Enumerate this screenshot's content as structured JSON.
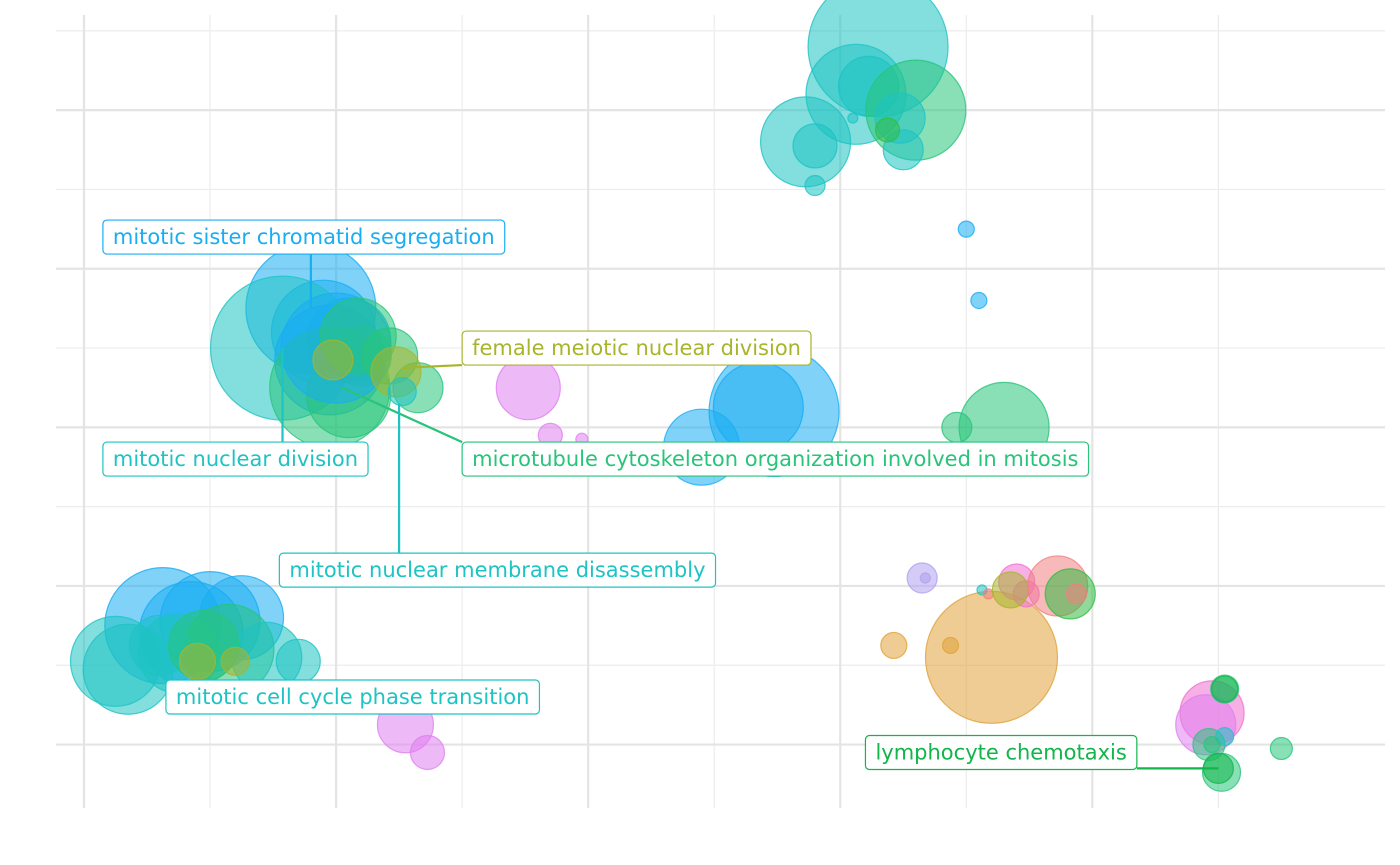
{
  "chart_data": {
    "type": "scatter",
    "title": "",
    "xlabel": "",
    "ylabel": "",
    "grid": true,
    "legend": "none",
    "xlim": [
      0,
      20.2
    ],
    "ylim": [
      0,
      10
    ],
    "x_major": [
      0,
      4,
      8,
      12,
      16
    ],
    "x_minor": [
      2,
      6,
      10,
      14,
      18
    ],
    "y_major": [
      0.8,
      2.8,
      4.8,
      6.8,
      8.8
    ],
    "y_minor": [
      1.8,
      3.8,
      5.8,
      7.8,
      9.8
    ],
    "colors": {
      "teal": "#1ec3c3",
      "blue": "#19adf2",
      "green": "#28c47a",
      "olive": "#a8b52a",
      "pink": "#e080f0",
      "orange": "#e0a23a",
      "lime": "#33bb44",
      "purple": "#b0a0f0",
      "magenta": "#f070d0",
      "salmon": "#f08080",
      "darkgreen": "#12b54a"
    },
    "points": [
      {
        "x": 12.6,
        "y": 9.6,
        "r": 70,
        "c": "teal"
      },
      {
        "x": 12.25,
        "y": 9.0,
        "r": 50,
        "c": "teal"
      },
      {
        "x": 12.45,
        "y": 9.1,
        "r": 30,
        "c": "teal"
      },
      {
        "x": 13.2,
        "y": 8.8,
        "r": 50,
        "c": "green"
      },
      {
        "x": 12.95,
        "y": 8.7,
        "r": 25,
        "c": "teal"
      },
      {
        "x": 13.0,
        "y": 8.3,
        "r": 20,
        "c": "teal"
      },
      {
        "x": 11.45,
        "y": 8.4,
        "r": 45,
        "c": "teal"
      },
      {
        "x": 11.6,
        "y": 8.35,
        "r": 22,
        "c": "teal"
      },
      {
        "x": 12.75,
        "y": 8.55,
        "r": 12,
        "c": "lime"
      },
      {
        "x": 12.2,
        "y": 8.7,
        "r": 5,
        "c": "teal"
      },
      {
        "x": 11.6,
        "y": 7.85,
        "r": 10,
        "c": "teal"
      },
      {
        "x": 14.0,
        "y": 7.3,
        "r": 8,
        "c": "blue"
      },
      {
        "x": 14.2,
        "y": 6.4,
        "r": 8,
        "c": "blue"
      },
      {
        "x": 3.6,
        "y": 6.3,
        "r": 65,
        "c": "blue"
      },
      {
        "x": 3.8,
        "y": 6.0,
        "r": 52,
        "c": "blue"
      },
      {
        "x": 4.2,
        "y": 5.9,
        "r": 42,
        "c": "blue"
      },
      {
        "x": 3.15,
        "y": 5.8,
        "r": 72,
        "c": "teal"
      },
      {
        "x": 3.9,
        "y": 5.65,
        "r": 55,
        "c": "blue"
      },
      {
        "x": 3.9,
        "y": 5.3,
        "r": 60,
        "c": "green"
      },
      {
        "x": 4.2,
        "y": 5.2,
        "r": 42,
        "c": "green"
      },
      {
        "x": 4.4,
        "y": 5.7,
        "r": 30,
        "c": "green"
      },
      {
        "x": 4.0,
        "y": 5.8,
        "r": 55,
        "c": "blue"
      },
      {
        "x": 4.35,
        "y": 5.95,
        "r": 38,
        "c": "green"
      },
      {
        "x": 4.85,
        "y": 5.7,
        "r": 28,
        "c": "green"
      },
      {
        "x": 5.3,
        "y": 5.3,
        "r": 25,
        "c": "green"
      },
      {
        "x": 4.95,
        "y": 5.5,
        "r": 25,
        "c": "olive"
      },
      {
        "x": 3.95,
        "y": 5.65,
        "r": 20,
        "c": "olive"
      },
      {
        "x": 5.05,
        "y": 5.25,
        "r": 14,
        "c": "teal"
      },
      {
        "x": 7.05,
        "y": 5.3,
        "r": 32,
        "c": "pink"
      },
      {
        "x": 7.4,
        "y": 4.7,
        "r": 12,
        "c": "pink"
      },
      {
        "x": 7.9,
        "y": 4.65,
        "r": 6,
        "c": "pink"
      },
      {
        "x": 10.95,
        "y": 5.0,
        "r": 65,
        "c": "blue"
      },
      {
        "x": 10.7,
        "y": 5.05,
        "r": 45,
        "c": "blue"
      },
      {
        "x": 9.8,
        "y": 4.55,
        "r": 38,
        "c": "blue"
      },
      {
        "x": 14.6,
        "y": 4.8,
        "r": 45,
        "c": "green"
      },
      {
        "x": 13.85,
        "y": 4.8,
        "r": 15,
        "c": "green"
      },
      {
        "x": 1.25,
        "y": 2.3,
        "r": 58,
        "c": "blue"
      },
      {
        "x": 2.0,
        "y": 2.35,
        "r": 50,
        "c": "blue"
      },
      {
        "x": 2.5,
        "y": 2.4,
        "r": 42,
        "c": "blue"
      },
      {
        "x": 1.7,
        "y": 2.2,
        "r": 52,
        "c": "blue"
      },
      {
        "x": 0.5,
        "y": 1.85,
        "r": 45,
        "c": "teal"
      },
      {
        "x": 0.7,
        "y": 1.75,
        "r": 45,
        "c": "teal"
      },
      {
        "x": 1.5,
        "y": 1.95,
        "r": 40,
        "c": "teal"
      },
      {
        "x": 2.3,
        "y": 2.0,
        "r": 45,
        "c": "green"
      },
      {
        "x": 2.9,
        "y": 1.9,
        "r": 35,
        "c": "teal"
      },
      {
        "x": 1.2,
        "y": 2.05,
        "r": 30,
        "c": "teal"
      },
      {
        "x": 1.9,
        "y": 2.05,
        "r": 35,
        "c": "green"
      },
      {
        "x": 3.4,
        "y": 1.85,
        "r": 22,
        "c": "teal"
      },
      {
        "x": 1.8,
        "y": 1.85,
        "r": 18,
        "c": "olive"
      },
      {
        "x": 2.4,
        "y": 1.85,
        "r": 14,
        "c": "olive"
      },
      {
        "x": 5.1,
        "y": 1.05,
        "r": 28,
        "c": "pink"
      },
      {
        "x": 5.45,
        "y": 0.7,
        "r": 17,
        "c": "pink"
      },
      {
        "x": 14.4,
        "y": 1.9,
        "r": 66,
        "c": "orange"
      },
      {
        "x": 12.85,
        "y": 2.05,
        "r": 13,
        "c": "orange"
      },
      {
        "x": 13.75,
        "y": 2.05,
        "r": 8,
        "c": "orange"
      },
      {
        "x": 13.3,
        "y": 2.9,
        "r": 15,
        "c": "purple"
      },
      {
        "x": 13.35,
        "y": 2.9,
        "r": 5,
        "c": "purple"
      },
      {
        "x": 14.25,
        "y": 2.75,
        "r": 5,
        "c": "teal"
      },
      {
        "x": 14.35,
        "y": 2.7,
        "r": 5,
        "c": "salmon"
      },
      {
        "x": 14.8,
        "y": 2.85,
        "r": 18,
        "c": "magenta"
      },
      {
        "x": 14.95,
        "y": 2.7,
        "r": 13,
        "c": "magenta"
      },
      {
        "x": 14.7,
        "y": 2.75,
        "r": 18,
        "c": "olive"
      },
      {
        "x": 15.45,
        "y": 2.8,
        "r": 30,
        "c": "salmon"
      },
      {
        "x": 15.65,
        "y": 2.7,
        "r": 25,
        "c": "lime"
      },
      {
        "x": 15.75,
        "y": 2.7,
        "r": 10,
        "c": "salmon"
      },
      {
        "x": 17.9,
        "y": 1.2,
        "r": 32,
        "c": "magenta"
      },
      {
        "x": 17.8,
        "y": 1.05,
        "r": 30,
        "c": "pink"
      },
      {
        "x": 18.1,
        "y": 1.5,
        "r": 14,
        "c": "green"
      },
      {
        "x": 18.1,
        "y": 1.5,
        "r": 13,
        "c": "darkgreen"
      },
      {
        "x": 17.85,
        "y": 0.8,
        "r": 16,
        "c": "green"
      },
      {
        "x": 18.1,
        "y": 0.9,
        "r": 9,
        "c": "teal"
      },
      {
        "x": 17.9,
        "y": 0.8,
        "r": 8,
        "c": "green"
      },
      {
        "x": 18.05,
        "y": 0.45,
        "r": 19,
        "c": "green"
      },
      {
        "x": 18.0,
        "y": 0.5,
        "r": 15,
        "c": "darkgreen"
      },
      {
        "x": 19.0,
        "y": 0.75,
        "r": 11,
        "c": "green"
      }
    ],
    "annotations": [
      {
        "text": "mitotic sister chromatid segregation",
        "c": "blue",
        "tx": 0.3,
        "ty": 7.2,
        "px": 3.6,
        "py": 6.3
      },
      {
        "text": "female meiotic nuclear division",
        "c": "olive",
        "tx": 6.0,
        "ty": 5.8,
        "px": 5.05,
        "py": 5.55
      },
      {
        "text": "mitotic nuclear division",
        "c": "teal",
        "tx": 0.3,
        "ty": 4.4,
        "px": 3.15,
        "py": 5.8
      },
      {
        "text": "microtubule cytoskeleton organization involved in mitosis",
        "c": "green",
        "tx": 6.0,
        "ty": 4.4,
        "px": 4.1,
        "py": 5.3
      },
      {
        "text": "mitotic nuclear membrane disassembly",
        "c": "teal",
        "tx": 3.1,
        "ty": 3.0,
        "px": 5.0,
        "py": 5.1
      },
      {
        "text": "mitotic cell cycle phase transition",
        "c": "teal",
        "tx": 1.3,
        "ty": 1.4,
        "px": 0.95,
        "py": 1.85
      },
      {
        "text": "lymphocyte chemotaxis",
        "c": "darkgreen",
        "tx": 12.4,
        "ty": 0.7,
        "px": 18.0,
        "py": 0.5
      }
    ]
  }
}
